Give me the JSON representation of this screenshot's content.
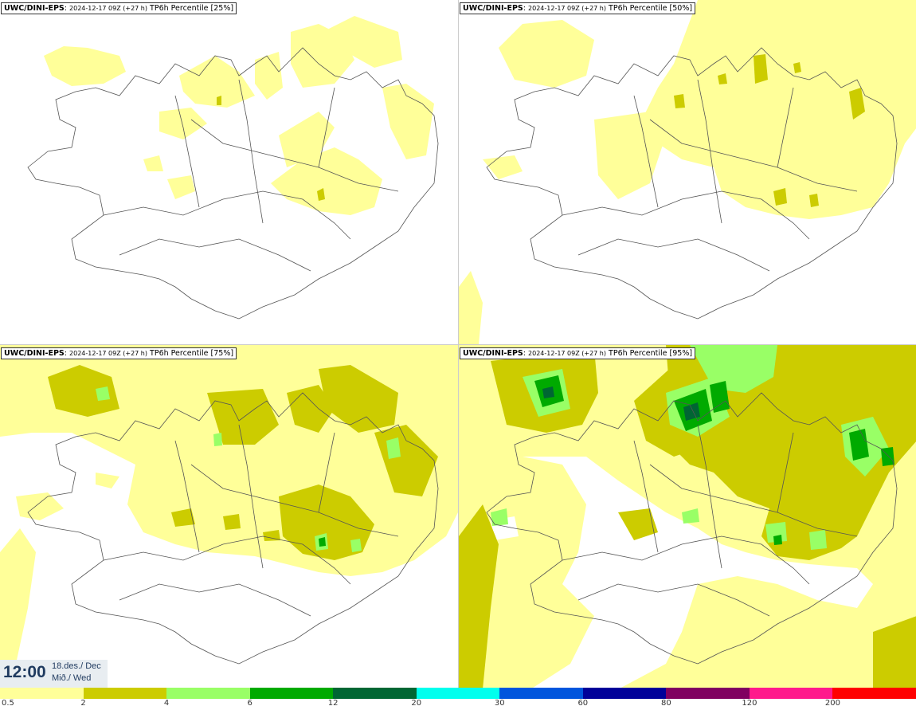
{
  "panels": [
    {
      "model": "UWC/DINI-EPS",
      "init": "2024-12-17 09Z (+27 h)",
      "variable": "TP6h Percentile [25%]"
    },
    {
      "model": "UWC/DINI-EPS",
      "init": "2024-12-17 09Z (+27 h)",
      "variable": "TP6h Percentile [50%]"
    },
    {
      "model": "UWC/DINI-EPS",
      "init": "2024-12-17 09Z (+27 h)",
      "variable": "TP6h Percentile [75%]"
    },
    {
      "model": "UWC/DINI-EPS",
      "init": "2024-12-17 09Z (+27 h)",
      "variable": "TP6h Percentile [95%]"
    }
  ],
  "valid_time": {
    "time": "12:00",
    "date_line1": "18.des./ Dec",
    "date_line2": "Mið./ Wed"
  },
  "colorbar": {
    "labels": [
      "0.5",
      "2",
      "4",
      "6",
      "12",
      "20",
      "30",
      "60",
      "80",
      "120",
      "200"
    ],
    "colors": [
      "#ffff99",
      "#cccc00",
      "#99ff66",
      "#00aa00",
      "#006633",
      "#00ffee",
      "#0055dd",
      "#000099",
      "#800060",
      "#ff1a8c",
      "#ff0000"
    ]
  }
}
